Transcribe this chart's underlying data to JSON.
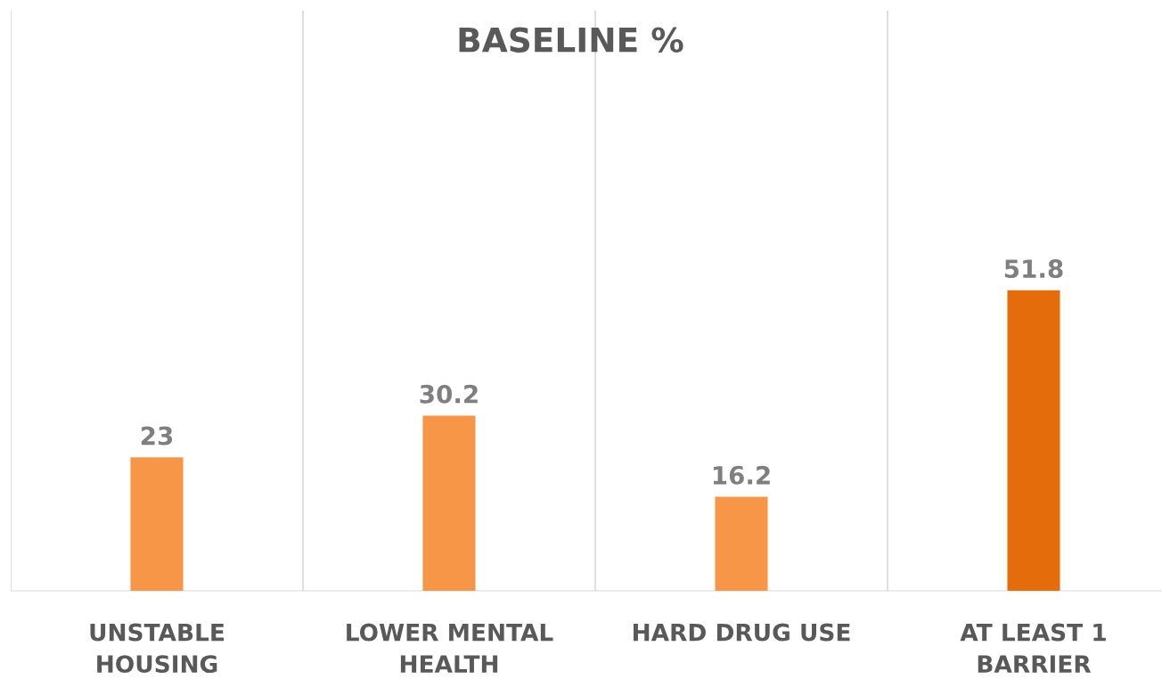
{
  "chart_data": {
    "type": "bar",
    "title": "BASELINE %",
    "categories": [
      "UNSTABLE\nHOUSING",
      "LOWER MENTAL\nHEALTH",
      "HARD DRUG USE",
      "AT LEAST 1\nBARRIER"
    ],
    "values": [
      23,
      30.2,
      16.2,
      51.8
    ],
    "colors": [
      "#f79646",
      "#f79646",
      "#f79646",
      "#e46c0a"
    ],
    "ylim": [
      0,
      100
    ],
    "tick_labels": "x",
    "data_labels": true,
    "grid": "x",
    "legend": false
  }
}
